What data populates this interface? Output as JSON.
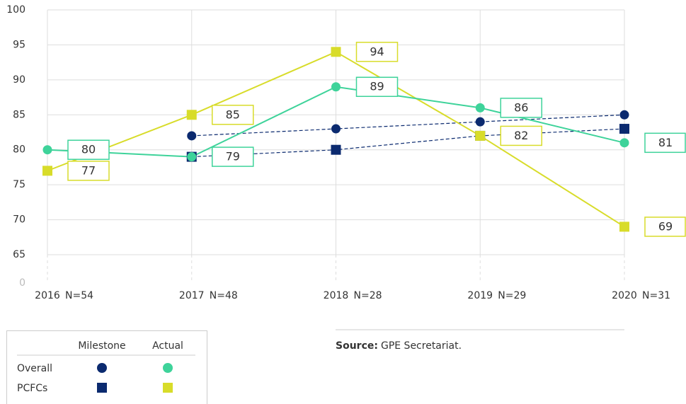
{
  "chart_data": {
    "type": "line",
    "categories": [
      "2016",
      "2017",
      "2018",
      "2019",
      "2020"
    ],
    "sample_sizes": [
      "N=54",
      "N=48",
      "N=28",
      "N=29",
      "N=31"
    ],
    "ylim": [
      0,
      100
    ],
    "axis_break": [
      0,
      65
    ],
    "yticks": [
      0,
      65,
      70,
      75,
      80,
      85,
      90,
      95,
      100
    ],
    "grid": true,
    "series": [
      {
        "name": "Overall",
        "kind": "Milestone",
        "color": "#0b2a6f",
        "marker": "circle",
        "dashed": true,
        "values": [
          null,
          82,
          83,
          84,
          85
        ]
      },
      {
        "name": "PCFCs",
        "kind": "Milestone",
        "color": "#0b2a6f",
        "marker": "square",
        "dashed": true,
        "values": [
          null,
          79,
          80,
          82,
          83
        ]
      },
      {
        "name": "PCFCs",
        "kind": "Actual",
        "color": "#d8dc2a",
        "marker": "square",
        "dashed": false,
        "labels": true,
        "values": [
          77,
          85,
          94,
          82,
          69
        ]
      },
      {
        "name": "Overall",
        "kind": "Actual",
        "color": "#3ed39a",
        "marker": "circle",
        "dashed": false,
        "labels": true,
        "values": [
          80,
          79,
          89,
          86,
          81
        ]
      }
    ],
    "source_label": "Source:",
    "source": "GPE Secretariat."
  }
}
